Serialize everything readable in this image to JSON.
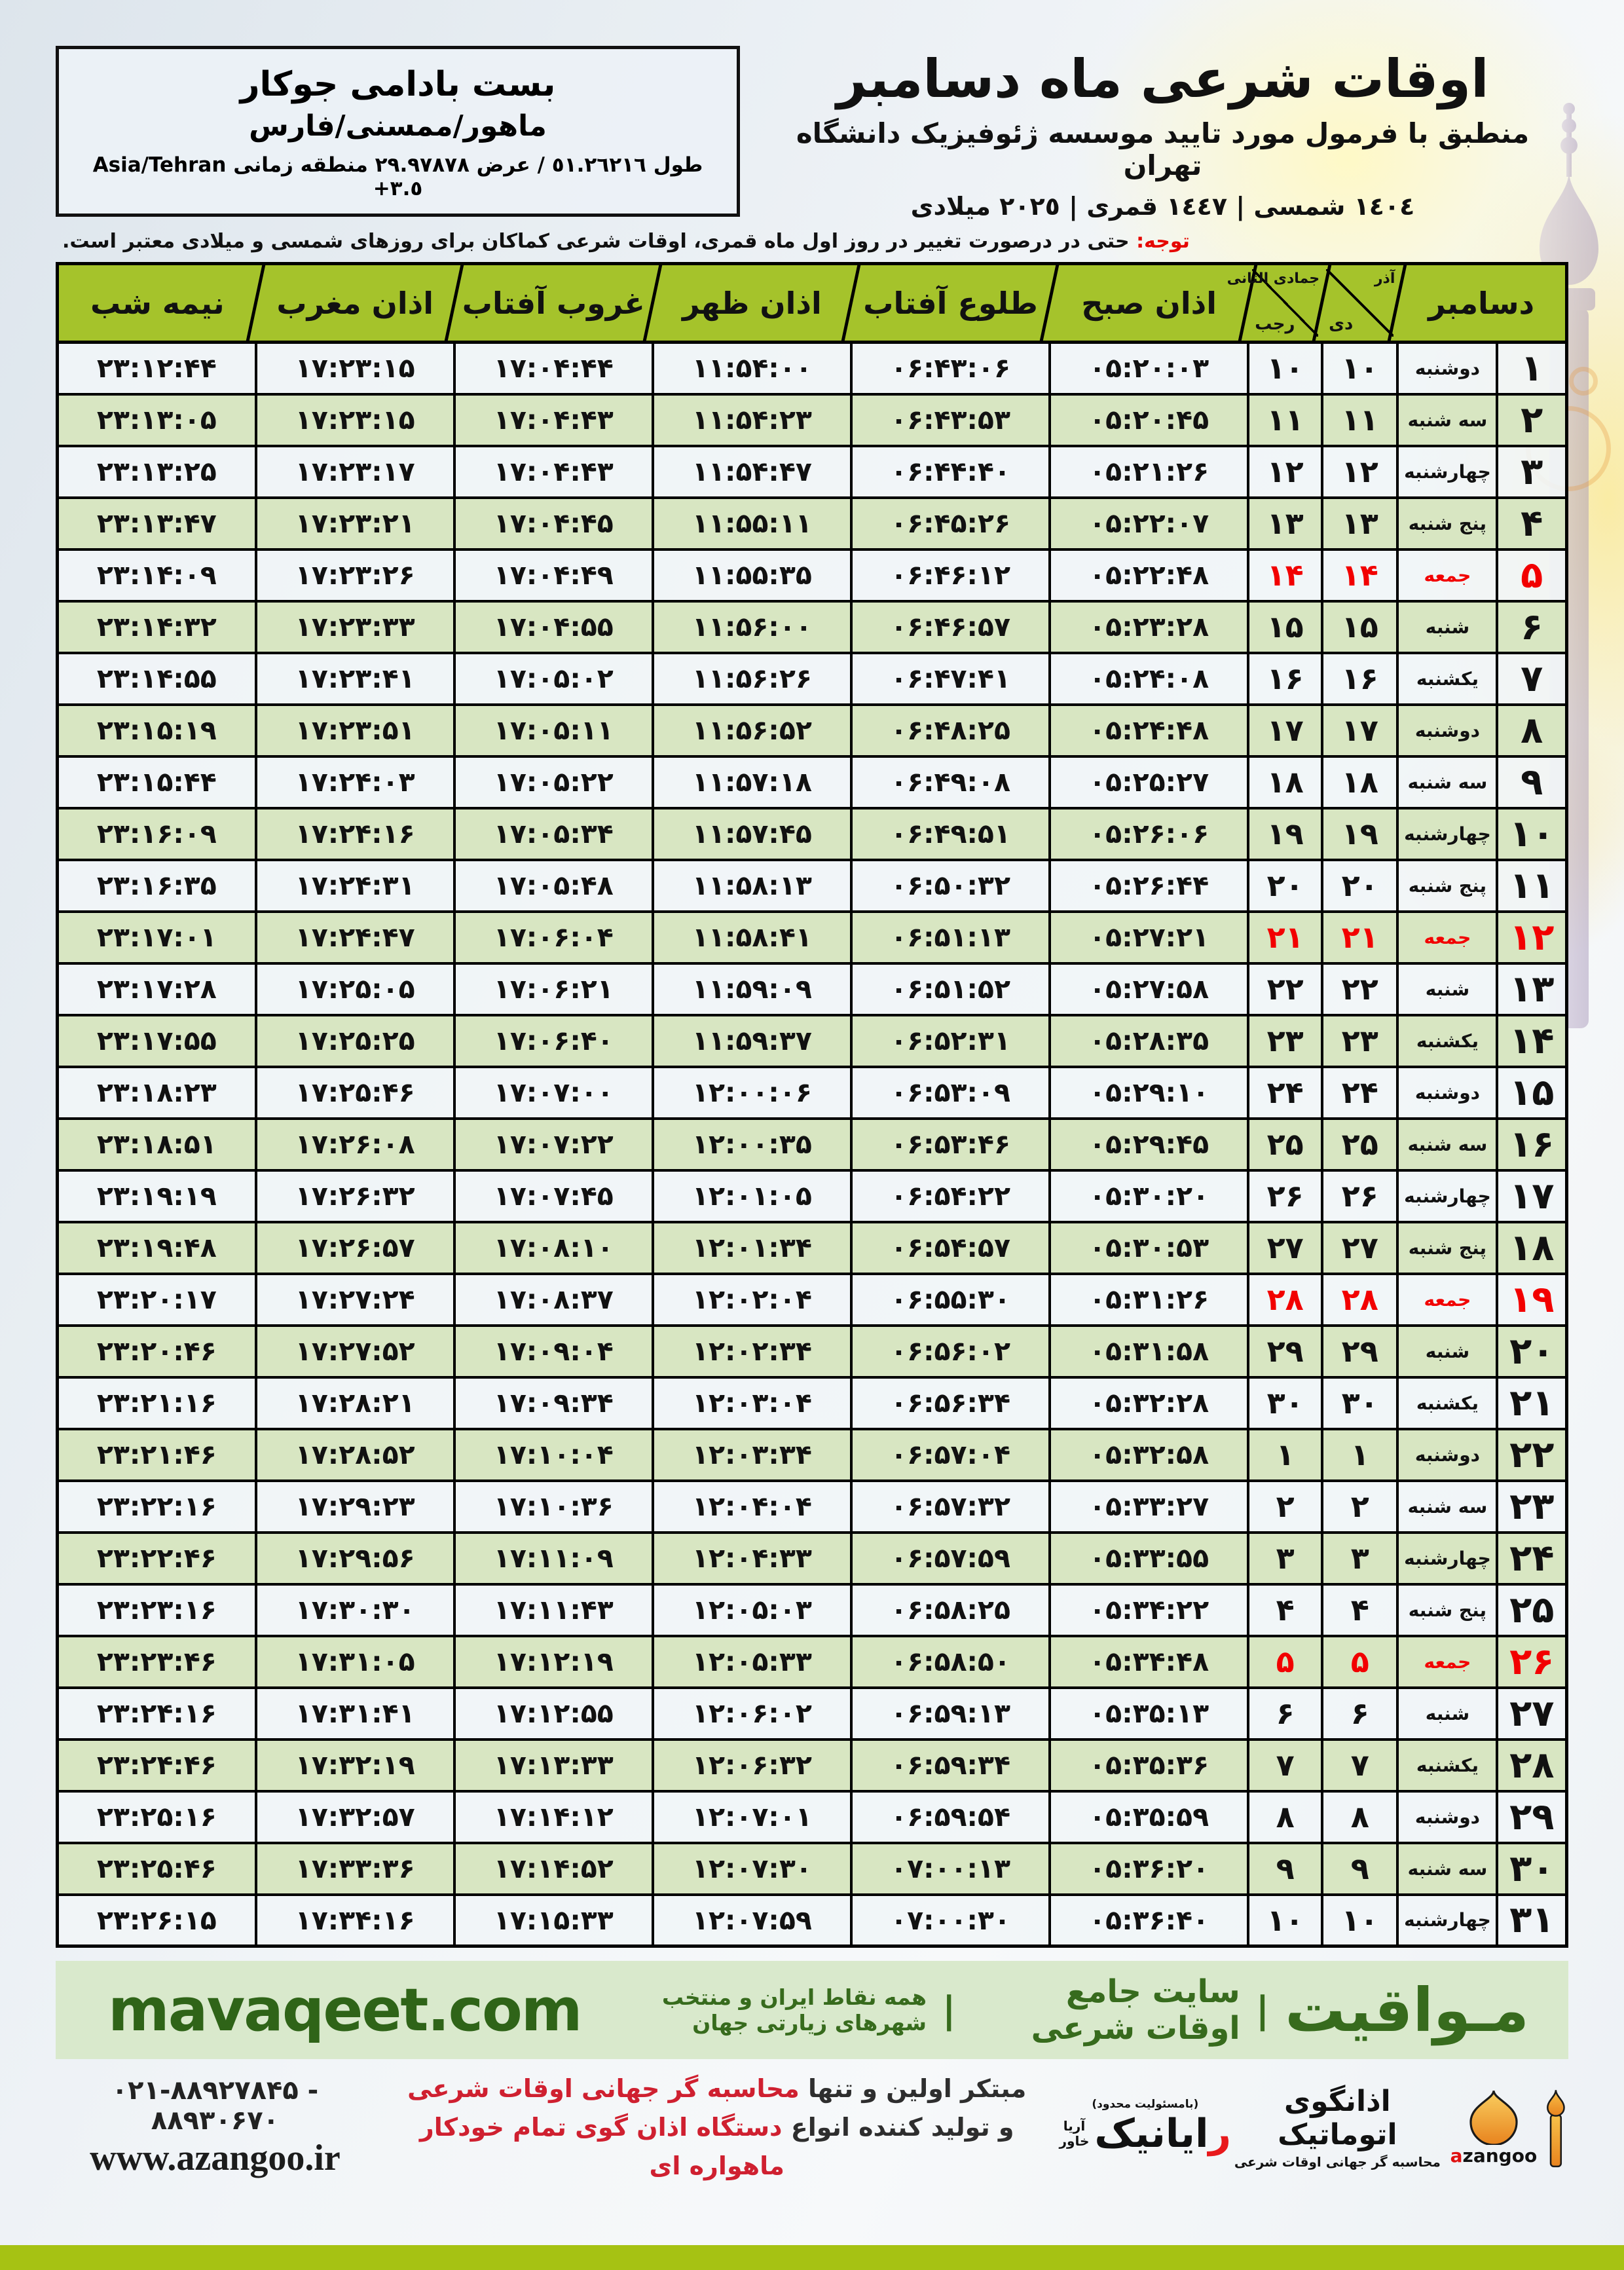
{
  "meta": {
    "title": "اوقات شرعی ماه دسامبر",
    "subtitle": "منطبق با فرمول مورد تایید موسسه ژئوفیزیک دانشگاه تهران",
    "years": "١٤٠٤ شمسی | ١٤٤٧ قمری | ٢٠٢٥ میلادی"
  },
  "location": {
    "name": "بست بادامی جوکار",
    "region": "ماهور/ممسنی/فارس",
    "coords_fa": "طول ٥١.٢٦٢١٦ / عرض ٢٩.٩٧٨٧٨ منطقه زمانی",
    "coords_en": "Asia/Tehran +٣.٥"
  },
  "note": {
    "label": "توجه:",
    "text": " حتی در درصورت تغییر در روز اول ماه قمری، اوقات شرعی کماکان برای روزهای شمسی و میلادی معتبر است."
  },
  "table": {
    "headers": {
      "december": "دسامبر",
      "persian_top": "آذر",
      "persian_bottom": "دی",
      "lunar_top": "جمادی الثانی",
      "lunar_bottom": "رجب",
      "fajr": "اذان صبح",
      "sunrise": "طلوع آفتاب",
      "noon": "اذان ظهر",
      "sunset": "غروب آفتاب",
      "maghrib": "اذان مغرب",
      "midnight": "نیمه شب"
    },
    "rows": [
      {
        "d": "1",
        "w": "دوشنبه",
        "p": "10",
        "l": "10",
        "sobh": "05:20:03",
        "tolu": "06:43:06",
        "zohr": "11:54:00",
        "ghorub": "17:04:44",
        "maghreb": "17:23:15",
        "nime": "23:12:44",
        "fri": false
      },
      {
        "d": "2",
        "w": "سه شنبه",
        "p": "11",
        "l": "11",
        "sobh": "05:20:45",
        "tolu": "06:43:53",
        "zohr": "11:54:23",
        "ghorub": "17:04:43",
        "maghreb": "17:23:15",
        "nime": "23:13:05",
        "fri": false
      },
      {
        "d": "3",
        "w": "چهارشنبه",
        "p": "12",
        "l": "12",
        "sobh": "05:21:26",
        "tolu": "06:44:40",
        "zohr": "11:54:47",
        "ghorub": "17:04:43",
        "maghreb": "17:23:17",
        "nime": "23:13:25",
        "fri": false
      },
      {
        "d": "4",
        "w": "پنج شنبه",
        "p": "13",
        "l": "13",
        "sobh": "05:22:07",
        "tolu": "06:45:26",
        "zohr": "11:55:11",
        "ghorub": "17:04:45",
        "maghreb": "17:23:21",
        "nime": "23:13:47",
        "fri": false
      },
      {
        "d": "5",
        "w": "جمعه",
        "p": "14",
        "l": "14",
        "sobh": "05:22:48",
        "tolu": "06:46:12",
        "zohr": "11:55:35",
        "ghorub": "17:04:49",
        "maghreb": "17:23:26",
        "nime": "23:14:09",
        "fri": true
      },
      {
        "d": "6",
        "w": "شنبه",
        "p": "15",
        "l": "15",
        "sobh": "05:23:28",
        "tolu": "06:46:57",
        "zohr": "11:56:00",
        "ghorub": "17:04:55",
        "maghreb": "17:23:33",
        "nime": "23:14:32",
        "fri": false
      },
      {
        "d": "7",
        "w": "یکشنبه",
        "p": "16",
        "l": "16",
        "sobh": "05:24:08",
        "tolu": "06:47:41",
        "zohr": "11:56:26",
        "ghorub": "17:05:02",
        "maghreb": "17:23:41",
        "nime": "23:14:55",
        "fri": false
      },
      {
        "d": "8",
        "w": "دوشنبه",
        "p": "17",
        "l": "17",
        "sobh": "05:24:48",
        "tolu": "06:48:25",
        "zohr": "11:56:52",
        "ghorub": "17:05:11",
        "maghreb": "17:23:51",
        "nime": "23:15:19",
        "fri": false
      },
      {
        "d": "9",
        "w": "سه شنبه",
        "p": "18",
        "l": "18",
        "sobh": "05:25:27",
        "tolu": "06:49:08",
        "zohr": "11:57:18",
        "ghorub": "17:05:22",
        "maghreb": "17:24:03",
        "nime": "23:15:44",
        "fri": false
      },
      {
        "d": "10",
        "w": "چهارشنبه",
        "p": "19",
        "l": "19",
        "sobh": "05:26:06",
        "tolu": "06:49:51",
        "zohr": "11:57:45",
        "ghorub": "17:05:34",
        "maghreb": "17:24:16",
        "nime": "23:16:09",
        "fri": false
      },
      {
        "d": "11",
        "w": "پنج شنبه",
        "p": "20",
        "l": "20",
        "sobh": "05:26:44",
        "tolu": "06:50:32",
        "zohr": "11:58:13",
        "ghorub": "17:05:48",
        "maghreb": "17:24:31",
        "nime": "23:16:35",
        "fri": false
      },
      {
        "d": "12",
        "w": "جمعه",
        "p": "21",
        "l": "21",
        "sobh": "05:27:21",
        "tolu": "06:51:13",
        "zohr": "11:58:41",
        "ghorub": "17:06:04",
        "maghreb": "17:24:47",
        "nime": "23:17:01",
        "fri": true
      },
      {
        "d": "13",
        "w": "شنبه",
        "p": "22",
        "l": "22",
        "sobh": "05:27:58",
        "tolu": "06:51:52",
        "zohr": "11:59:09",
        "ghorub": "17:06:21",
        "maghreb": "17:25:05",
        "nime": "23:17:28",
        "fri": false
      },
      {
        "d": "14",
        "w": "یکشنبه",
        "p": "23",
        "l": "23",
        "sobh": "05:28:35",
        "tolu": "06:52:31",
        "zohr": "11:59:37",
        "ghorub": "17:06:40",
        "maghreb": "17:25:25",
        "nime": "23:17:55",
        "fri": false
      },
      {
        "d": "15",
        "w": "دوشنبه",
        "p": "24",
        "l": "24",
        "sobh": "05:29:10",
        "tolu": "06:53:09",
        "zohr": "12:00:06",
        "ghorub": "17:07:00",
        "maghreb": "17:25:46",
        "nime": "23:18:23",
        "fri": false
      },
      {
        "d": "16",
        "w": "سه شنبه",
        "p": "25",
        "l": "25",
        "sobh": "05:29:45",
        "tolu": "06:53:46",
        "zohr": "12:00:35",
        "ghorub": "17:07:22",
        "maghreb": "17:26:08",
        "nime": "23:18:51",
        "fri": false
      },
      {
        "d": "17",
        "w": "چهارشنبه",
        "p": "26",
        "l": "26",
        "sobh": "05:30:20",
        "tolu": "06:54:22",
        "zohr": "12:01:05",
        "ghorub": "17:07:45",
        "maghreb": "17:26:32",
        "nime": "23:19:19",
        "fri": false
      },
      {
        "d": "18",
        "w": "پنج شنبه",
        "p": "27",
        "l": "27",
        "sobh": "05:30:53",
        "tolu": "06:54:57",
        "zohr": "12:01:34",
        "ghorub": "17:08:10",
        "maghreb": "17:26:57",
        "nime": "23:19:48",
        "fri": false
      },
      {
        "d": "19",
        "w": "جمعه",
        "p": "28",
        "l": "28",
        "sobh": "05:31:26",
        "tolu": "06:55:30",
        "zohr": "12:02:04",
        "ghorub": "17:08:37",
        "maghreb": "17:27:24",
        "nime": "23:20:17",
        "fri": true
      },
      {
        "d": "20",
        "w": "شنبه",
        "p": "29",
        "l": "29",
        "sobh": "05:31:58",
        "tolu": "06:56:02",
        "zohr": "12:02:34",
        "ghorub": "17:09:04",
        "maghreb": "17:27:52",
        "nime": "23:20:46",
        "fri": false
      },
      {
        "d": "21",
        "w": "یکشنبه",
        "p": "30",
        "l": "30",
        "sobh": "05:32:28",
        "tolu": "06:56:34",
        "zohr": "12:03:04",
        "ghorub": "17:09:34",
        "maghreb": "17:28:21",
        "nime": "23:21:16",
        "fri": false
      },
      {
        "d": "22",
        "w": "دوشنبه",
        "p": "1",
        "l": "1",
        "sobh": "05:32:58",
        "tolu": "06:57:04",
        "zohr": "12:03:34",
        "ghorub": "17:10:04",
        "maghreb": "17:28:52",
        "nime": "23:21:46",
        "fri": false
      },
      {
        "d": "23",
        "w": "سه شنبه",
        "p": "2",
        "l": "2",
        "sobh": "05:33:27",
        "tolu": "06:57:32",
        "zohr": "12:04:04",
        "ghorub": "17:10:36",
        "maghreb": "17:29:23",
        "nime": "23:22:16",
        "fri": false
      },
      {
        "d": "24",
        "w": "چهارشنبه",
        "p": "3",
        "l": "3",
        "sobh": "05:33:55",
        "tolu": "06:57:59",
        "zohr": "12:04:33",
        "ghorub": "17:11:09",
        "maghreb": "17:29:56",
        "nime": "23:22:46",
        "fri": false
      },
      {
        "d": "25",
        "w": "پنج شنبه",
        "p": "4",
        "l": "4",
        "sobh": "05:34:22",
        "tolu": "06:58:25",
        "zohr": "12:05:03",
        "ghorub": "17:11:43",
        "maghreb": "17:30:30",
        "nime": "23:23:16",
        "fri": false
      },
      {
        "d": "26",
        "w": "جمعه",
        "p": "5",
        "l": "5",
        "sobh": "05:34:48",
        "tolu": "06:58:50",
        "zohr": "12:05:33",
        "ghorub": "17:12:19",
        "maghreb": "17:31:05",
        "nime": "23:23:46",
        "fri": true
      },
      {
        "d": "27",
        "w": "شنبه",
        "p": "6",
        "l": "6",
        "sobh": "05:35:13",
        "tolu": "06:59:13",
        "zohr": "12:06:02",
        "ghorub": "17:12:55",
        "maghreb": "17:31:41",
        "nime": "23:24:16",
        "fri": false
      },
      {
        "d": "28",
        "w": "یکشنبه",
        "p": "7",
        "l": "7",
        "sobh": "05:35:36",
        "tolu": "06:59:34",
        "zohr": "12:06:32",
        "ghorub": "17:13:33",
        "maghreb": "17:32:19",
        "nime": "23:24:46",
        "fri": false
      },
      {
        "d": "29",
        "w": "دوشنبه",
        "p": "8",
        "l": "8",
        "sobh": "05:35:59",
        "tolu": "06:59:54",
        "zohr": "12:07:01",
        "ghorub": "17:14:12",
        "maghreb": "17:32:57",
        "nime": "23:25:16",
        "fri": false
      },
      {
        "d": "30",
        "w": "سه شنبه",
        "p": "9",
        "l": "9",
        "sobh": "05:36:20",
        "tolu": "07:00:13",
        "zohr": "12:07:30",
        "ghorub": "17:14:52",
        "maghreb": "17:33:36",
        "nime": "23:25:46",
        "fri": false
      },
      {
        "d": "31",
        "w": "چهارشنبه",
        "p": "10",
        "l": "10",
        "sobh": "05:36:40",
        "tolu": "07:00:30",
        "zohr": "12:07:59",
        "ghorub": "17:15:33",
        "maghreb": "17:34:16",
        "nime": "23:26:15",
        "fri": false
      }
    ]
  },
  "band": {
    "brand": "مـواقیت",
    "sep1": "|",
    "tagline1": "سایت جامع اوقات شرعی",
    "sep2": "|",
    "tagline2": "همه نقاط ایران و منتخب شهرهای زیارتی جهان",
    "site": "mavaqeet.com"
  },
  "bottom": {
    "phone": "۰۲۱-۸۸۹۲۷۸۴۵ - ۸۸۹۳۰۶۷۰",
    "url": "www.azangoo.ir",
    "center": {
      "line1_dark": "مبتکر اولین و تنها ",
      "line1_red": "محاسبه گر جهانی اوقات شرعی",
      "line2_dark": "و تولید کننده انواع ",
      "line2_red": "دستگاه اذان گوی تمام خودکار ماهواره ای"
    },
    "rayanik": {
      "note": "(بامسئولیت محدود)",
      "first": "ر",
      "rest": "ایانیک",
      "sub1": "آریا",
      "sub2": "خاور"
    },
    "azangoo": {
      "title": "اذانگوی اتوماتیک",
      "sub": "محاسبه گر جهانی اوقات شرعی",
      "latin_a": "a",
      "latin_rest": "zangoo"
    }
  },
  "icons": {
    "dome": "mosque-dome-icon",
    "minaret": "minaret-icon",
    "background": "faded-minaret-art"
  },
  "colors": {
    "header_green": "#a5c32b",
    "row_green": "#d8e6c2",
    "friday_red": "#f20000",
    "band_green": "#d9e9cc",
    "band_text_green": "#376b1d",
    "lime_stripe": "#a6c213"
  }
}
